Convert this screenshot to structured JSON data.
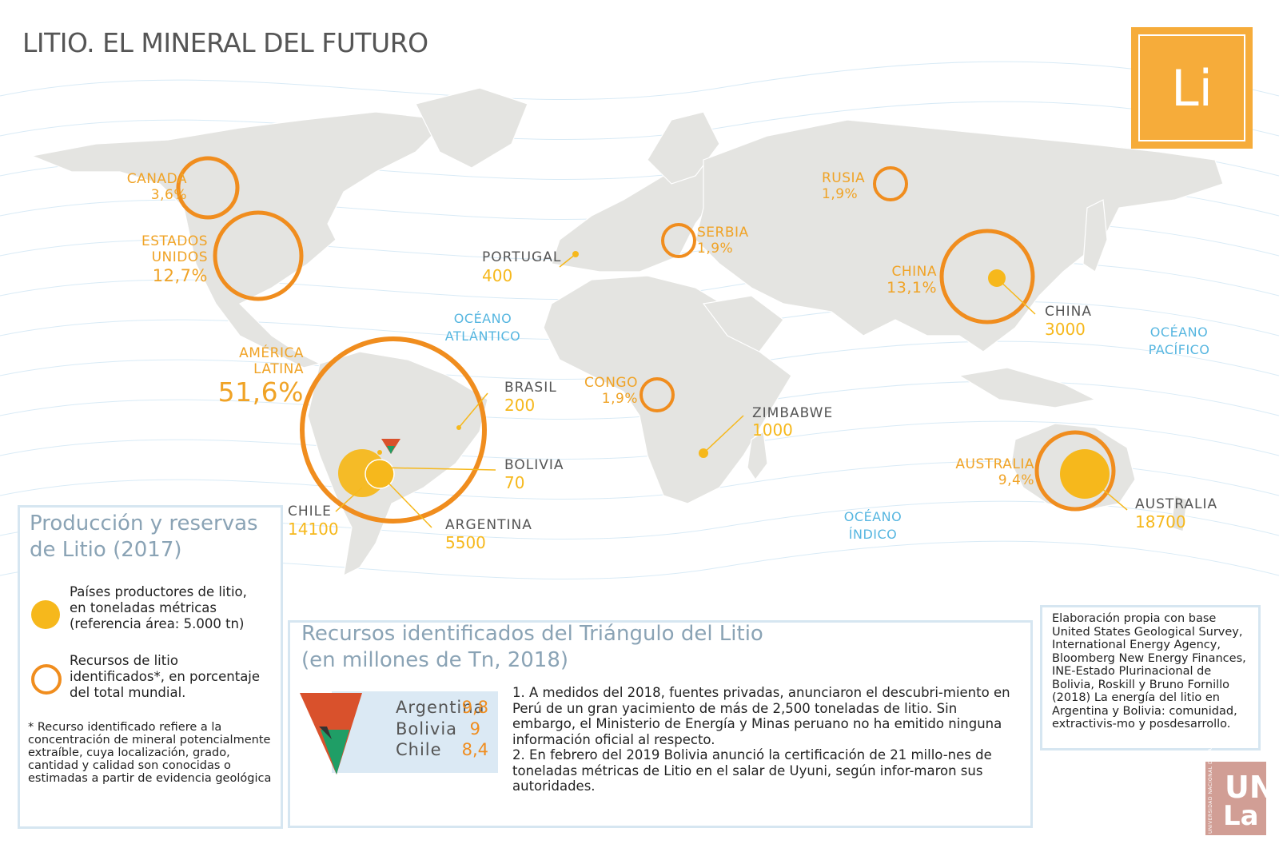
{
  "title": "LITIO. EL MINERAL DEL FUTURO",
  "element_symbol": "Li",
  "colors": {
    "production_dot": "#f6b81c",
    "resource_ring": "#f08d1e",
    "land": "#e4e4e1",
    "ocean_label": "#56b6e0",
    "panel_border": "#d6e6f1",
    "element_box": "#f6ac3a",
    "triangle_argentina": "#d9512c",
    "triangle_chile": "#1f9e66"
  },
  "resources": [
    {
      "country": "CANADÁ",
      "percent": "3,6%"
    },
    {
      "country": "ESTADOS UNIDOS",
      "country_line1": "ESTADOS",
      "country_line2": "UNIDOS",
      "percent": "12,7%"
    },
    {
      "country": "AMÉRICA LATINA",
      "country_line1": "AMÉRICA",
      "country_line2": "LATINA",
      "percent": "51,6%"
    },
    {
      "country": "RUSIA",
      "percent": "1,9%"
    },
    {
      "country": "SERBIA",
      "percent": "1,9%"
    },
    {
      "country": "CHINA",
      "percent": "13,1%"
    },
    {
      "country": "CONGO",
      "percent": "1,9%"
    },
    {
      "country": "AUSTRALIA",
      "percent": "9,4%"
    }
  ],
  "production": [
    {
      "country": "PORTUGAL",
      "tonnes": "400"
    },
    {
      "country": "BRASIL",
      "tonnes": "200"
    },
    {
      "country": "BOLIVIA",
      "tonnes": "70"
    },
    {
      "country": "CHILE",
      "tonnes": "14100"
    },
    {
      "country": "ARGENTINA",
      "tonnes": "5500"
    },
    {
      "country": "CHINA",
      "tonnes": "3000"
    },
    {
      "country": "ZIMBABWE",
      "tonnes": "1000"
    },
    {
      "country": "AUSTRALIA",
      "tonnes": "18700"
    }
  ],
  "oceans": {
    "atlantic_line1": "OCÉANO",
    "atlantic_line2": "ATLÁNTICO",
    "pacific_line1": "OCÉANO",
    "pacific_line2": "PACÍFICO",
    "indian_line1": "OCÉANO",
    "indian_line2": "ÍNDICO"
  },
  "legend": {
    "title_line1": "Producción y reservas",
    "title_line2": "de Litio (2017)",
    "producers_line1": "Países productores de litio,",
    "producers_line2": "en toneladas métricas",
    "producers_line3": "(referencia área: 5.000 tn)",
    "resources_line1": "Recursos de litio",
    "resources_line2": "identificados*, en porcentaje",
    "resources_line3": "del total mundial.",
    "footnote": "* Recurso identificado refiere a la concentración de mineral potencialmente extraíble, cuya localización, grado, cantidad y calidad son conocidas o estimadas a partir de evidencia geológica"
  },
  "triangle": {
    "title_line1": "Recursos identificados del Triángulo del Litio",
    "title_line2": "(en millones de Tn, 2018)",
    "rows": [
      {
        "country": "Argentina",
        "value": "9,8"
      },
      {
        "country": "Bolivia",
        "value": "9"
      },
      {
        "country": "Chile",
        "value": "8,4"
      }
    ],
    "note1": "1.    A medidos del 2018, fuentes privadas, anunciaron el descubri-miento en Perú de un gran yacimiento de más de 2,500 toneladas de litio. Sin embargo, el Ministerio de  Energía y Minas peruano no ha emitido ninguna información oficial al respecto.",
    "note2": "2.    En febrero del 2019 Bolivia anunció la certificación de 21 millo-nes de toneladas métricas de Litio en el salar de Uyuni, según infor-maron sus autoridades."
  },
  "source": "Elaboración propia con base United States Geological Survey, International Energy Agency, Bloomberg New Energy Finances, INE-Estado Plurinacional de Bolivia, Roskill y Bruno Fornillo (2018) La energía del litio en Argentina y Bolivia: comunidad, extractivis-mo y posdesarrollo.",
  "logo": {
    "line1": "UN",
    "line2": "La",
    "side": "UNIVERSIDAD NACIONAL DE LANÚS"
  }
}
